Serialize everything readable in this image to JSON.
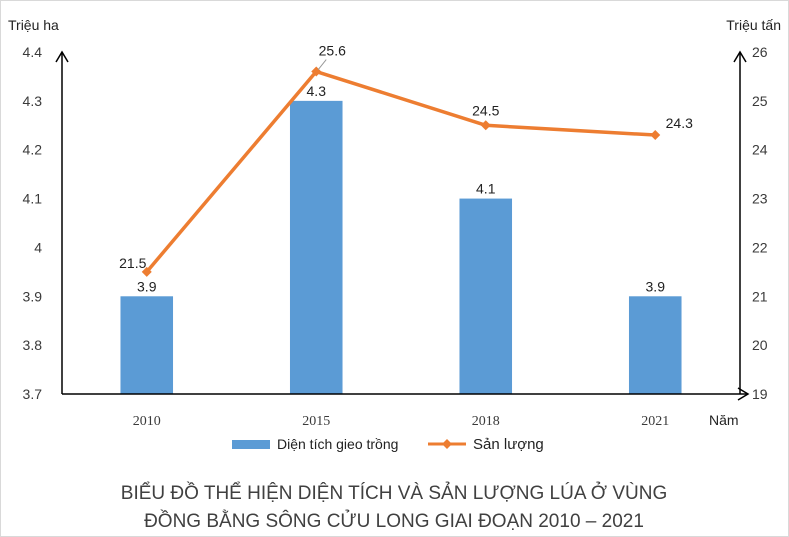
{
  "chart_data": {
    "type": "bar+line",
    "categories": [
      "2010",
      "2015",
      "2018",
      "2021"
    ],
    "series": [
      {
        "name": "Diện tích gieo trồng",
        "type": "bar",
        "axis": "left",
        "values": [
          3.9,
          4.3,
          4.1,
          3.9
        ],
        "labels": [
          "3.9",
          "4.3",
          "4.1",
          "3.9"
        ],
        "color": "#5B9BD5"
      },
      {
        "name": "Sản lượng",
        "type": "line",
        "axis": "right",
        "values": [
          21.5,
          25.6,
          24.5,
          24.3
        ],
        "labels": [
          "21.5",
          "25.6",
          "24.5",
          "24.3"
        ],
        "color": "#ED7D31"
      }
    ],
    "left_axis": {
      "unit_label": "Triệu ha",
      "ylim": [
        3.7,
        4.4
      ],
      "ticks": [
        "3.7",
        "3.8",
        "3.9",
        "4",
        "4.1",
        "4.2",
        "4.3",
        "4.4"
      ]
    },
    "right_axis": {
      "unit_label": "Triệu tấn",
      "ylim": [
        19,
        26
      ],
      "ticks": [
        "19",
        "20",
        "21",
        "22",
        "23",
        "24",
        "25",
        "26"
      ]
    },
    "xlabel": "Năm",
    "title_lines": [
      "BIỂU ĐỒ THỂ HIỆN DIỆN TÍCH VÀ SẢN LƯỢNG LÚA Ở VÙNG",
      "ĐỒNG BẰNG SÔNG CỬU LONG GIAI ĐOẠN 2010 – 2021"
    ],
    "legend_position": "bottom",
    "grid": false
  }
}
